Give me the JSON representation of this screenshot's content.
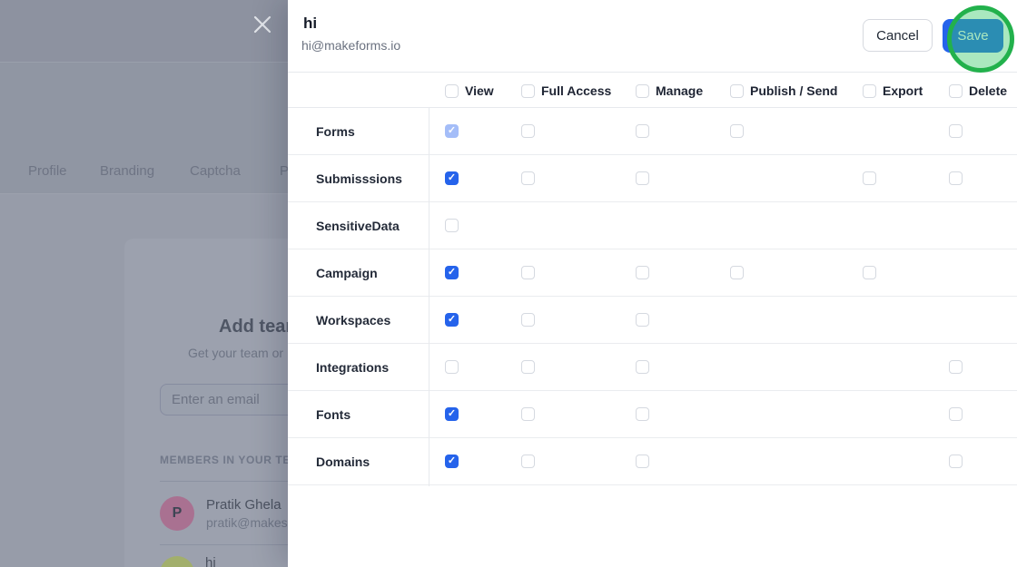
{
  "background": {
    "tabs": [
      {
        "label": "Profile"
      },
      {
        "label": "Branding"
      },
      {
        "label": "Captcha"
      },
      {
        "label": "Pl"
      }
    ],
    "card": {
      "heading": "Add team",
      "subheading": "Get your team or",
      "email_placeholder": "Enter an email",
      "members_section_label": "MEMBERS IN YOUR TEA",
      "members": [
        {
          "initial": "P",
          "name": "Pratik Ghela",
          "email": "pratik@makes",
          "avatar_color": "#a97191"
        },
        {
          "initial": "",
          "name": "hi",
          "email": "",
          "avatar_color": "#a2af6c"
        }
      ]
    }
  },
  "drawer": {
    "title": "hi",
    "subtitle": "hi@makeforms.io",
    "buttons": {
      "cancel": "Cancel",
      "save": "Save"
    },
    "accent_colors": {
      "checked": "#2563eb",
      "checked_disabled": "#a4bdf8",
      "save_blue": "#2563eb",
      "annotation_green": "#22b14c",
      "annotation_fill": "rgba(52,199,103,0.42)"
    },
    "table": {
      "columns": [
        {
          "id": "view",
          "label": "View"
        },
        {
          "id": "full_access",
          "label": "Full Access"
        },
        {
          "id": "manage",
          "label": "Manage"
        },
        {
          "id": "publish_send",
          "label": "Publish / Send"
        },
        {
          "id": "export",
          "label": "Export"
        },
        {
          "id": "delete",
          "label": "Delete"
        }
      ],
      "rows": [
        {
          "label": "Forms",
          "cells": {
            "view": "checked-disabled",
            "full_access": "unchecked",
            "manage": "unchecked",
            "publish_send": "unchecked",
            "delete": "unchecked"
          }
        },
        {
          "label": "Submisssions",
          "cells": {
            "view": "checked",
            "full_access": "unchecked",
            "manage": "unchecked",
            "export": "unchecked",
            "delete": "unchecked"
          }
        },
        {
          "label": "SensitiveData",
          "cells": {
            "view": "unchecked"
          }
        },
        {
          "label": "Campaign",
          "cells": {
            "view": "checked",
            "full_access": "unchecked",
            "manage": "unchecked",
            "publish_send": "unchecked",
            "export": "unchecked"
          }
        },
        {
          "label": "Workspaces",
          "cells": {
            "view": "checked",
            "full_access": "unchecked",
            "manage": "unchecked"
          }
        },
        {
          "label": "Integrations",
          "cells": {
            "view": "unchecked",
            "full_access": "unchecked",
            "manage": "unchecked",
            "delete": "unchecked"
          }
        },
        {
          "label": "Fonts",
          "cells": {
            "view": "checked",
            "full_access": "unchecked",
            "manage": "unchecked",
            "delete": "unchecked"
          }
        },
        {
          "label": "Domains",
          "cells": {
            "view": "checked",
            "full_access": "unchecked",
            "manage": "unchecked",
            "delete": "unchecked"
          }
        }
      ]
    }
  }
}
